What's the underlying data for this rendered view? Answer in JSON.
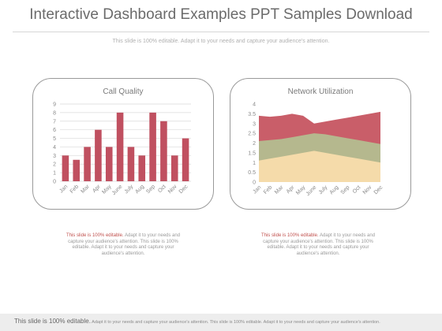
{
  "page": {
    "title": "Interactive Dashboard Examples PPT Samples Download",
    "subtitle": "This slide is 100% editable. Adapt it to your needs and capture your audience's attention."
  },
  "notes": [
    {
      "highlight": "This slide is 100% editable.",
      "body": " Adapt it to your needs and capture your audience's attention. This slide is 100% editable. Adapt it to your needs and capture your audience's attention."
    },
    {
      "highlight": "This slide is 100% editable.",
      "body": " Adapt it to your needs and capture your audience's attention. This slide is 100% editable. Adapt it to your needs and capture your audience's attention."
    }
  ],
  "footer": {
    "lead": "This slide is 100% editable.",
    "rest": " Adapt it to your needs and capture your audience's attention. This slide is 100% editable. Adapt it to your needs and capture your audience's attention."
  },
  "chart_data": [
    {
      "type": "bar",
      "title": "Call Quality",
      "categories": [
        "Jan",
        "Feb",
        "Mar",
        "Apr",
        "May",
        "June",
        "July",
        "Aug",
        "Sep",
        "Oct",
        "Nov",
        "Dec"
      ],
      "values": [
        3,
        2.5,
        4,
        6,
        4,
        8,
        4,
        3,
        8,
        7,
        3,
        5
      ],
      "ylim": [
        0,
        9
      ],
      "yticks": [
        0,
        1,
        2,
        3,
        4,
        5,
        6,
        7,
        8,
        9
      ],
      "grid": true,
      "colors": {
        "bar": "#c05060"
      }
    },
    {
      "type": "area",
      "title": "Network Utilization",
      "categories": [
        "Jan",
        "Feb",
        "Mar",
        "Apr",
        "May",
        "June",
        "July",
        "Aug",
        "Sep",
        "Oct",
        "Nov",
        "Dec"
      ],
      "series": [
        {
          "values": [
            1.1,
            1.2,
            1.3,
            1.4,
            1.5,
            1.6,
            1.5,
            1.4,
            1.3,
            1.2,
            1.1,
            1.0
          ],
          "color": "#f5dbaa"
        },
        {
          "values": [
            2.1,
            2.15,
            2.2,
            2.3,
            2.4,
            2.5,
            2.45,
            2.35,
            2.25,
            2.15,
            2.05,
            1.95
          ],
          "color": "#b5b88e"
        },
        {
          "values": [
            3.4,
            3.35,
            3.4,
            3.5,
            3.4,
            3.0,
            3.1,
            3.2,
            3.3,
            3.4,
            3.5,
            3.6
          ],
          "color": "#c95e69"
        }
      ],
      "ylim": [
        0,
        4
      ],
      "yticks": [
        "0",
        "0.5",
        "1",
        "1.5",
        "2",
        "2.5",
        "3",
        "3.5",
        "4"
      ],
      "grid": false
    }
  ]
}
